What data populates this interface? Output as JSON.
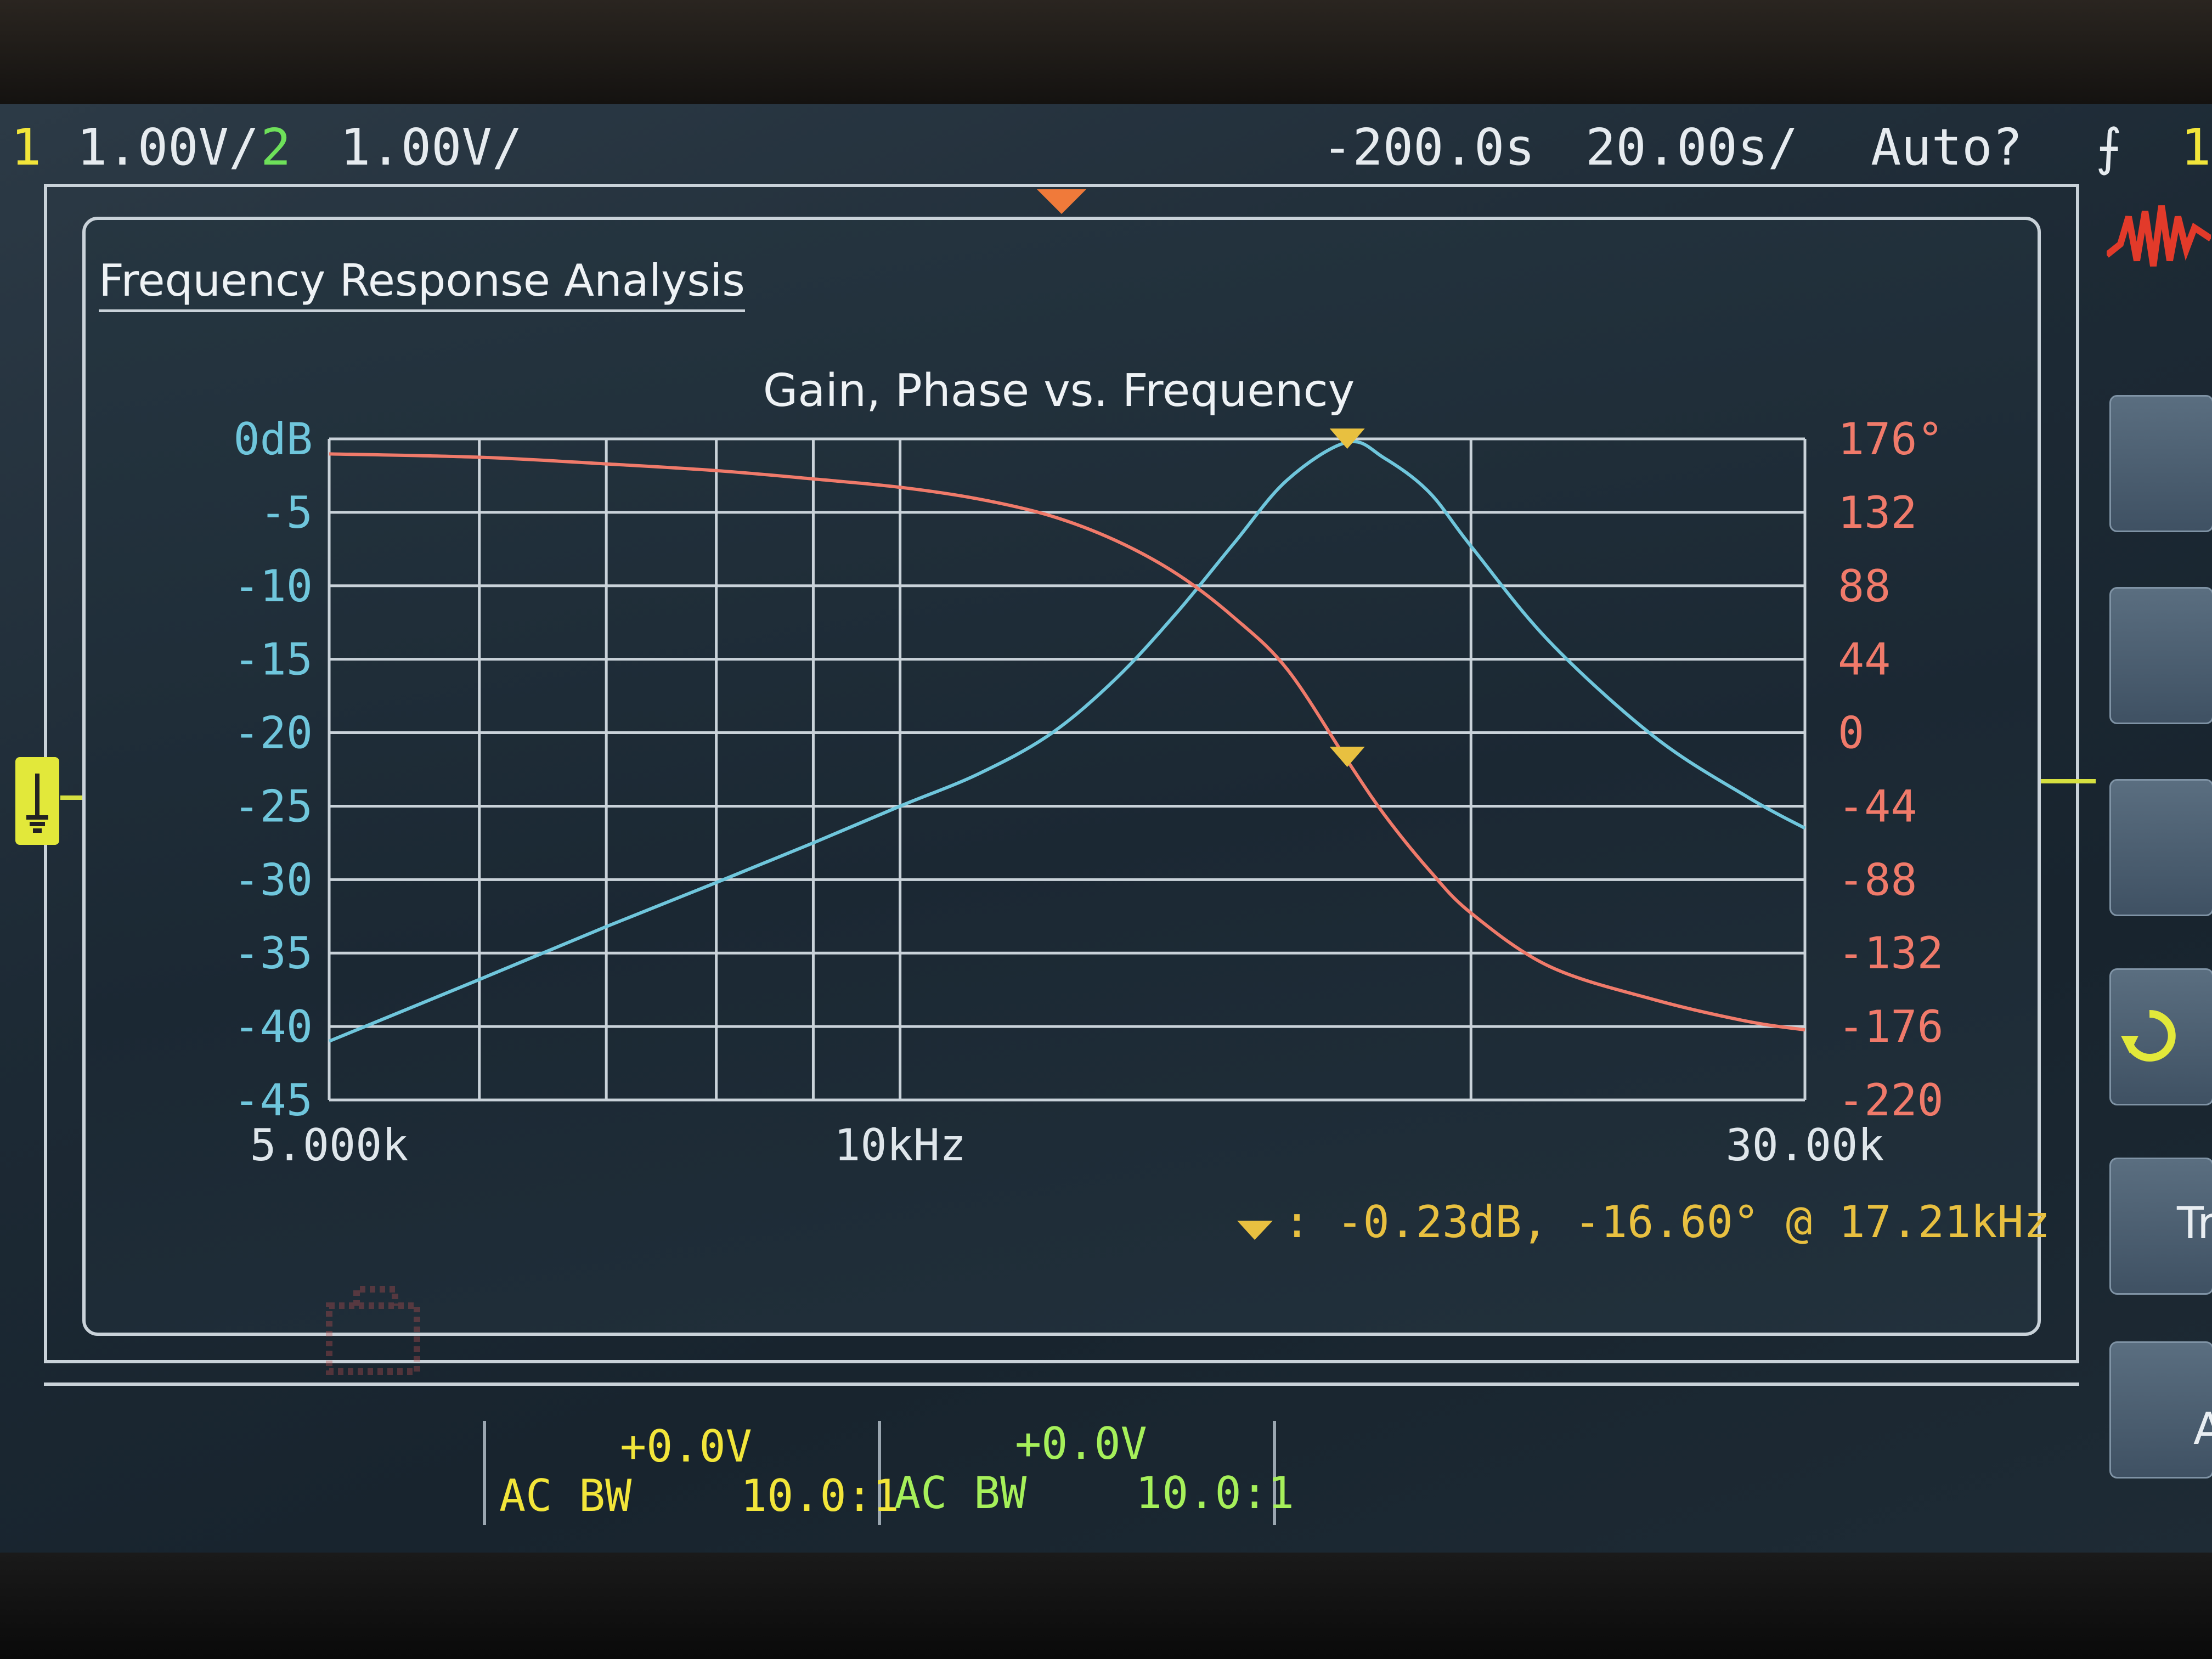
{
  "header": {
    "ch1_number": "1",
    "ch1_scale": "1.00V/",
    "ch2_number": "2",
    "ch2_scale": "1.00V/",
    "time_delay": "-200.0s",
    "time_scale": "20.00s/",
    "trigger_mode": "Auto?",
    "trigger_icon": "trigger-edge-icon",
    "trigger_source": "1"
  },
  "window": {
    "title": "Frequency Response Analysis"
  },
  "chart_data": {
    "type": "line",
    "title": "Gain, Phase vs. Frequency",
    "x_scale": "log",
    "xlim": [
      5000,
      30000
    ],
    "x_tick_labels": [
      "5.000k",
      "10kHz",
      "30.00k"
    ],
    "x_tick_values": [
      5000,
      10000,
      30000
    ],
    "y_left": {
      "range": [
        -45,
        0
      ],
      "tick_labels": [
        "0dB",
        "-5",
        "-10",
        "-15",
        "-20",
        "-25",
        "-30",
        "-35",
        "-40",
        "-45"
      ],
      "color": "#6fc6dc"
    },
    "y_right": {
      "range": [
        -220,
        176
      ],
      "tick_labels": [
        "176°",
        "132",
        "88",
        "44",
        "0",
        "-44",
        "-88",
        "-132",
        "-176",
        "-220"
      ],
      "color": "#f07a6a"
    },
    "grid": true,
    "series": [
      {
        "axis": "left",
        "color": "#6fc6dc",
        "x": [
          5000,
          6000,
          7000,
          8000,
          9000,
          10000,
          11000,
          12000,
          13000,
          14000,
          15000,
          16000,
          17210,
          18000,
          19000,
          20000,
          22000,
          25000,
          28000,
          30000
        ],
        "y": [
          -41,
          -36.8,
          -33.2,
          -30.2,
          -27.5,
          -25,
          -22.8,
          -20.1,
          -16.3,
          -11.8,
          -7.1,
          -2.8,
          -0.23,
          -1.3,
          -3.6,
          -7.3,
          -13.8,
          -20.3,
          -24.4,
          -26.5
        ]
      },
      {
        "axis": "right",
        "color": "#f07a6a",
        "x": [
          5000,
          6000,
          7000,
          8000,
          9000,
          10000,
          11000,
          12000,
          13000,
          14000,
          15000,
          16000,
          17210,
          18000,
          19000,
          20000,
          22000,
          25000,
          28000,
          30000
        ],
        "y": [
          167,
          165,
          161,
          157,
          152,
          147,
          140,
          130,
          115,
          95,
          69,
          38,
          -16.6,
          -49,
          -82,
          -108,
          -140,
          -160,
          -173,
          -178
        ]
      }
    ],
    "marker": {
      "x": 17210,
      "gain": -0.23,
      "phase": -16.6,
      "color": "#e8c040",
      "readout": ": -0.23dB, -16.60° @ 17.21kHz"
    }
  },
  "channel_strip": {
    "ch1": {
      "offset": "+0.0V",
      "coupling": "AC",
      "bw": "BW",
      "probe": "10.0:1"
    },
    "ch2": {
      "offset": "+0.0V",
      "coupling": "AC",
      "bw": "BW",
      "probe": "10.0:1"
    }
  },
  "softkeys": {
    "partial_label_1": "Tr",
    "partial_label_2": "A"
  },
  "colors": {
    "ch1": "#f2e53a",
    "ch2": "#6ee05a",
    "grid": "#c9d2d9"
  }
}
